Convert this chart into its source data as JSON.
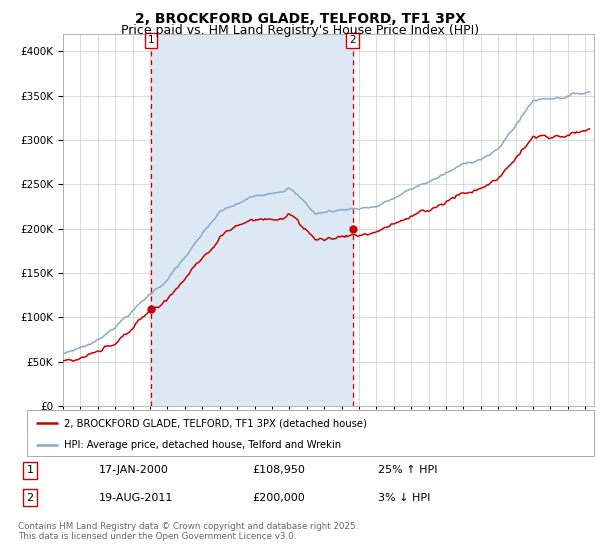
{
  "title": "2, BROCKFORD GLADE, TELFORD, TF1 3PX",
  "subtitle": "Price paid vs. HM Land Registry's House Price Index (HPI)",
  "ylim": [
    0,
    420000
  ],
  "yticks": [
    0,
    50000,
    100000,
    150000,
    200000,
    250000,
    300000,
    350000,
    400000
  ],
  "xlim_start": 1995.0,
  "xlim_end": 2025.5,
  "sale1_x": 2000.04,
  "sale1_y": 108950,
  "sale1_label": "1",
  "sale1_date": "17-JAN-2000",
  "sale1_price": "£108,950",
  "sale1_hpi": "25% ↑ HPI",
  "sale2_x": 2011.63,
  "sale2_y": 200000,
  "sale2_label": "2",
  "sale2_date": "19-AUG-2011",
  "sale2_price": "£200,000",
  "sale2_hpi": "3% ↓ HPI",
  "line1_color": "#cc0000",
  "line2_color": "#88aacc",
  "shade_color": "#dde8f5",
  "legend1_label": "2, BROCKFORD GLADE, TELFORD, TF1 3PX (detached house)",
  "legend2_label": "HPI: Average price, detached house, Telford and Wrekin",
  "footer": "Contains HM Land Registry data © Crown copyright and database right 2025.\nThis data is licensed under the Open Government Licence v3.0.",
  "background_color": "#ffffff",
  "grid_color": "#cccccc",
  "title_fontsize": 10,
  "subtitle_fontsize": 9
}
